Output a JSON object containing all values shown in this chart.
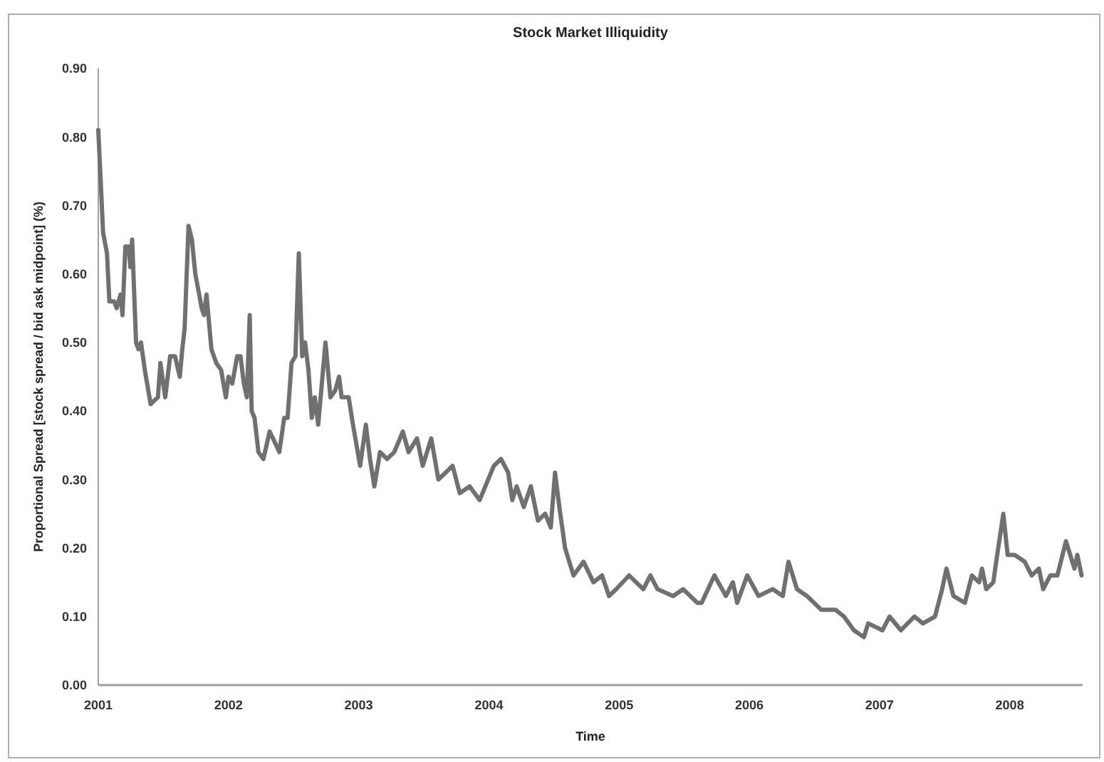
{
  "chart_data": {
    "type": "line",
    "title": "Stock Market Illiquidity",
    "xlabel": "Time",
    "ylabel": "Proportional Spread [stock spread / bid ask midpoint] (%)",
    "xlim": [
      2001,
      2008.56
    ],
    "xticks": [
      2001,
      2002,
      2003,
      2004,
      2005,
      2006,
      2007,
      2008
    ],
    "ylim": [
      0,
      0.9
    ],
    "yticks": [
      {
        "value": 0,
        "label": "0.00"
      },
      {
        "value": 0.1,
        "label": "0.10"
      },
      {
        "value": 0.2,
        "label": "0.20"
      },
      {
        "value": 0.3,
        "label": "0.30"
      },
      {
        "value": 0.4,
        "label": "0.40"
      },
      {
        "value": 0.5,
        "label": "0.50"
      },
      {
        "value": 0.6,
        "label": "0.60"
      },
      {
        "value": 0.7,
        "label": "0.70"
      },
      {
        "value": 0.8,
        "label": "0.80"
      },
      {
        "value": 0.9,
        "label": "0.90"
      }
    ],
    "grid": false,
    "marker": "none",
    "line_style": "solid",
    "series": [
      {
        "color": "#707070",
        "x": [
          2001.0,
          2001.037,
          2001.067,
          2001.085,
          2001.122,
          2001.141,
          2001.171,
          2001.186,
          2001.208,
          2001.234,
          2001.246,
          2001.26,
          2001.29,
          2001.309,
          2001.328,
          2001.357,
          2001.402,
          2001.458,
          2001.477,
          2001.514,
          2001.552,
          2001.589,
          2001.626,
          2001.645,
          2001.663,
          2001.693,
          2001.719,
          2001.745,
          2001.775,
          2001.794,
          2001.812,
          2001.831,
          2001.869,
          2001.906,
          2001.943,
          2001.98,
          2002.0,
          2002.029,
          2002.067,
          2002.092,
          2002.118,
          2002.141,
          2002.163,
          2002.178,
          2002.2,
          2002.23,
          2002.268,
          2002.316,
          2002.342,
          2002.39,
          2002.428,
          2002.454,
          2002.484,
          2002.514,
          2002.54,
          2002.566,
          2002.588,
          2002.614,
          2002.64,
          2002.663,
          2002.689,
          2002.745,
          2002.783,
          2002.82,
          2002.849,
          2002.869,
          2002.923,
          2002.956,
          2003.011,
          2003.055,
          2003.087,
          2003.12,
          2003.164,
          2003.219,
          2003.273,
          2003.339,
          2003.383,
          2003.448,
          2003.492,
          2003.557,
          2003.612,
          2003.667,
          2003.721,
          2003.776,
          2003.852,
          2003.929,
          2004.038,
          2004.093,
          2004.148,
          2004.18,
          2004.213,
          2004.268,
          2004.322,
          2004.377,
          2004.432,
          2004.475,
          2004.508,
          2004.541,
          2004.585,
          2004.65,
          2004.727,
          2004.803,
          2004.869,
          2004.923,
          2004.978,
          2005.077,
          2005.186,
          2005.24,
          2005.295,
          2005.415,
          2005.492,
          2005.601,
          2005.634,
          2005.732,
          2005.82,
          2005.874,
          2005.907,
          2005.984,
          2006.071,
          2006.18,
          2006.257,
          2006.301,
          2006.366,
          2006.443,
          2006.552,
          2006.661,
          2006.727,
          2006.803,
          2006.88,
          2006.913,
          2007.022,
          2007.077,
          2007.164,
          2007.268,
          2007.333,
          2007.426,
          2007.481,
          2007.514,
          2007.568,
          2007.656,
          2007.71,
          2007.765,
          2007.787,
          2007.82,
          2007.874,
          2007.896,
          2007.951,
          2007.984,
          2008.038,
          2008.115,
          2008.169,
          2008.224,
          2008.257,
          2008.311,
          2008.366,
          2008.432,
          2008.497,
          2008.519,
          2008.552
        ],
        "values": [
          0.81,
          0.66,
          0.63,
          0.56,
          0.56,
          0.55,
          0.57,
          0.54,
          0.64,
          0.64,
          0.61,
          0.65,
          0.5,
          0.49,
          0.5,
          0.46,
          0.41,
          0.42,
          0.47,
          0.42,
          0.48,
          0.48,
          0.45,
          0.49,
          0.52,
          0.67,
          0.65,
          0.6,
          0.57,
          0.55,
          0.54,
          0.57,
          0.49,
          0.47,
          0.46,
          0.42,
          0.45,
          0.44,
          0.48,
          0.48,
          0.44,
          0.42,
          0.54,
          0.4,
          0.39,
          0.34,
          0.33,
          0.37,
          0.36,
          0.34,
          0.39,
          0.39,
          0.47,
          0.48,
          0.63,
          0.48,
          0.5,
          0.46,
          0.39,
          0.42,
          0.38,
          0.5,
          0.42,
          0.43,
          0.45,
          0.42,
          0.42,
          0.38,
          0.32,
          0.38,
          0.33,
          0.29,
          0.34,
          0.33,
          0.34,
          0.37,
          0.34,
          0.36,
          0.32,
          0.36,
          0.3,
          0.31,
          0.32,
          0.28,
          0.29,
          0.27,
          0.32,
          0.33,
          0.31,
          0.27,
          0.29,
          0.26,
          0.29,
          0.24,
          0.25,
          0.23,
          0.31,
          0.26,
          0.2,
          0.16,
          0.18,
          0.15,
          0.16,
          0.13,
          0.14,
          0.16,
          0.14,
          0.16,
          0.14,
          0.13,
          0.14,
          0.12,
          0.12,
          0.16,
          0.13,
          0.15,
          0.12,
          0.16,
          0.13,
          0.14,
          0.13,
          0.18,
          0.14,
          0.13,
          0.11,
          0.11,
          0.1,
          0.08,
          0.07,
          0.09,
          0.08,
          0.1,
          0.08,
          0.1,
          0.09,
          0.1,
          0.14,
          0.17,
          0.13,
          0.12,
          0.16,
          0.15,
          0.17,
          0.14,
          0.15,
          0.18,
          0.25,
          0.19,
          0.19,
          0.18,
          0.16,
          0.17,
          0.14,
          0.16,
          0.16,
          0.21,
          0.17,
          0.19,
          0.16
        ]
      }
    ]
  }
}
